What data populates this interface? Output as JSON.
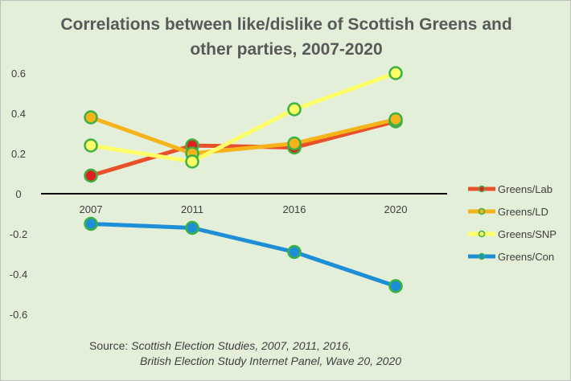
{
  "chart_data": {
    "type": "line",
    "title": "Correlations between like/dislike of Scottish Greens and other parties, 2007-2020",
    "xlabel": "",
    "ylabel": "",
    "categories": [
      "2007",
      "2011",
      "2016",
      "2020"
    ],
    "ylim": [
      -0.7,
      0.7
    ],
    "yticks": [
      0.6,
      0.4,
      0.2,
      0,
      -0.2,
      -0.4,
      -0.6
    ],
    "ytick_labels": [
      "0.6",
      "0.4",
      "0.2",
      "0",
      "-0.2",
      "-0.4",
      "-0.6"
    ],
    "grid": false,
    "legend_position": "right",
    "series": [
      {
        "name": "Greens/Lab",
        "values": [
          0.09,
          0.24,
          0.23,
          0.36
        ],
        "line_color": "#e8502a",
        "marker_fill": "#e02020",
        "marker_edge": "#3cb043"
      },
      {
        "name": "Greens/LD",
        "values": [
          0.38,
          0.2,
          0.25,
          0.37
        ],
        "line_color": "#f4b41a",
        "marker_fill": "#f4b41a",
        "marker_edge": "#3cb043"
      },
      {
        "name": "Greens/SNP",
        "values": [
          0.24,
          0.16,
          0.42,
          0.6
        ],
        "line_color": "#ffff66",
        "marker_fill": "#ffff66",
        "marker_edge": "#3cb043"
      },
      {
        "name": "Greens/Con",
        "values": [
          -0.15,
          -0.17,
          -0.29,
          -0.46
        ],
        "line_color": "#1e8fd6",
        "marker_fill": "#1e8fd6",
        "marker_edge": "#3cb043"
      }
    ],
    "source_prefix": "Source: ",
    "source_line1": "Scottish Election Studies, 2007, 2011, 2016,",
    "source_line2": "British Election Study Internet Panel, Wave 20, 2020"
  },
  "colors": {
    "background": "#e3efd9",
    "title": "#595959",
    "text": "#404040",
    "zero_axis": "#000000"
  }
}
